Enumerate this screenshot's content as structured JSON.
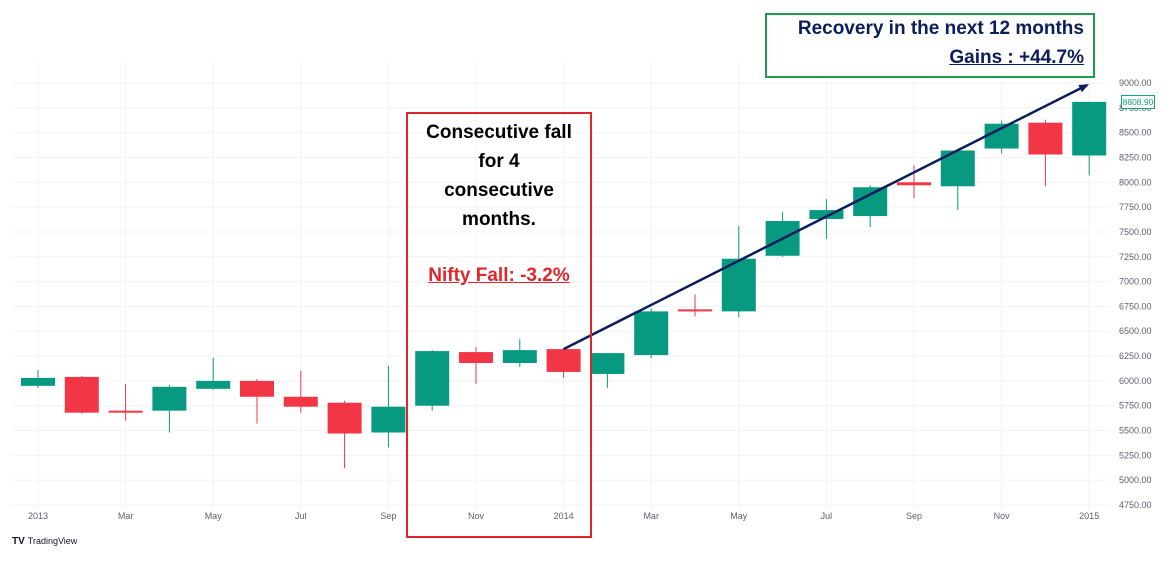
{
  "chart_data": {
    "type": "candlestick",
    "interval": "monthly",
    "colors": {
      "up": "#089981",
      "down": "#f23645",
      "arrow": "#0b1d5c",
      "badge": "#14a37f"
    },
    "candles": [
      {
        "o": 5950,
        "h": 6110,
        "l": 5930,
        "c": 6030
      },
      {
        "o": 6040,
        "h": 6050,
        "l": 5670,
        "c": 5680
      },
      {
        "o": 5700,
        "h": 5970,
        "l": 5600,
        "c": 5690
      },
      {
        "o": 5700,
        "h": 5960,
        "l": 5480,
        "c": 5940
      },
      {
        "o": 5920,
        "h": 6230,
        "l": 5910,
        "c": 6000
      },
      {
        "o": 6000,
        "h": 6020,
        "l": 5570,
        "c": 5840
      },
      {
        "o": 5840,
        "h": 6100,
        "l": 5680,
        "c": 5740
      },
      {
        "o": 5780,
        "h": 5800,
        "l": 5120,
        "c": 5470
      },
      {
        "o": 5480,
        "h": 6150,
        "l": 5330,
        "c": 5740
      },
      {
        "o": 5750,
        "h": 6310,
        "l": 5700,
        "c": 6300
      },
      {
        "o": 6290,
        "h": 6340,
        "l": 5970,
        "c": 6180
      },
      {
        "o": 6180,
        "h": 6420,
        "l": 6140,
        "c": 6310
      },
      {
        "o": 6320,
        "h": 6330,
        "l": 6030,
        "c": 6090
      },
      {
        "o": 6070,
        "h": 6280,
        "l": 5930,
        "c": 6280
      },
      {
        "o": 6260,
        "h": 6730,
        "l": 6230,
        "c": 6700
      },
      {
        "o": 6720,
        "h": 6870,
        "l": 6650,
        "c": 6700
      },
      {
        "o": 6700,
        "h": 7560,
        "l": 6640,
        "c": 7230
      },
      {
        "o": 7260,
        "h": 7700,
        "l": 7250,
        "c": 7610
      },
      {
        "o": 7630,
        "h": 7830,
        "l": 7430,
        "c": 7720
      },
      {
        "o": 7660,
        "h": 7970,
        "l": 7550,
        "c": 7950
      },
      {
        "o": 8000,
        "h": 8170,
        "l": 7840,
        "c": 7970
      },
      {
        "o": 7960,
        "h": 8340,
        "l": 7720,
        "c": 8320
      },
      {
        "o": 8340,
        "h": 8620,
        "l": 8290,
        "c": 8590
      },
      {
        "o": 8600,
        "h": 8630,
        "l": 7960,
        "c": 8280
      },
      {
        "o": 8270,
        "h": 8800,
        "l": 8070,
        "c": 8810
      }
    ],
    "x_tick_labels": [
      {
        "index": 0,
        "label": "2013"
      },
      {
        "index": 2,
        "label": "Mar"
      },
      {
        "index": 4,
        "label": "May"
      },
      {
        "index": 6,
        "label": "Jul"
      },
      {
        "index": 8,
        "label": "Sep"
      },
      {
        "index": 10,
        "label": "Nov"
      },
      {
        "index": 12,
        "label": "2014"
      },
      {
        "index": 14,
        "label": "Mar"
      },
      {
        "index": 16,
        "label": "May"
      },
      {
        "index": 18,
        "label": "Jul"
      },
      {
        "index": 20,
        "label": "Sep"
      },
      {
        "index": 22,
        "label": "Nov"
      },
      {
        "index": 24,
        "label": "2015"
      }
    ],
    "y_ticks": [
      "9000.00",
      "8750.00",
      "8500.00",
      "8250.00",
      "8000.00",
      "7750.00",
      "7500.00",
      "7250.00",
      "7000.00",
      "6750.00",
      "6500.00",
      "6250.00",
      "6000.00",
      "5750.00",
      "5500.00",
      "5250.00",
      "5000.00",
      "4750.00"
    ],
    "y_range": [
      4750,
      9000
    ],
    "last_price": "8808.90",
    "trend_arrow": {
      "from_index": 12,
      "from_value": 6320,
      "to_index": 24,
      "to_value": 8980
    }
  },
  "annotations": {
    "fall_box": {
      "lines": [
        "Consecutive fall",
        "for 4",
        "consecutive",
        "months."
      ],
      "fall_label": "Nifty Fall: -3.2%"
    },
    "recovery_box": {
      "title": "Recovery in the next 12 months",
      "gain_label": "Gains : +44.7%"
    }
  },
  "branding": {
    "logo": "TV",
    "name": "TradingView"
  }
}
